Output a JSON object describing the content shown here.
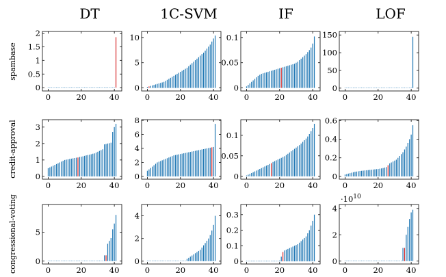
{
  "columns": [
    "DT",
    "1C-SVM",
    "IF",
    "LOF"
  ],
  "rows": [
    "spambase",
    "credit-approval",
    "congressional-voting"
  ],
  "colors": {
    "bar": "#1f77b4",
    "highlight": "#d62728",
    "frame": "#000000"
  },
  "chart_data": [
    {
      "type": "bar",
      "row": "spambase",
      "column": "DT",
      "x_ticks": [
        0,
        20,
        40
      ],
      "ylim": [
        -0.12,
        2.06
      ],
      "yticks": [
        "0",
        "0.5",
        "1",
        "1.5",
        "2"
      ],
      "ytick_values": [
        0,
        0.5,
        1,
        1.5,
        2
      ],
      "values": [
        0,
        0,
        0,
        0,
        0,
        0,
        0,
        0,
        0,
        0,
        0,
        0,
        0,
        0,
        0,
        0,
        0,
        0,
        0,
        0,
        0,
        0,
        0,
        0,
        0,
        0,
        0,
        0,
        0,
        0,
        0,
        0,
        0,
        0,
        0,
        0,
        0,
        0,
        0,
        0,
        0,
        1.85
      ],
      "highlight_index": 41
    },
    {
      "type": "bar",
      "row": "spambase",
      "column": "1C-SVM",
      "x_ticks": [
        0,
        20,
        40
      ],
      "ylim": [
        -0.6,
        11.2
      ],
      "yticks": [
        "0",
        "5",
        "10"
      ],
      "ytick_values": [
        0,
        5,
        10
      ],
      "values": [
        0.2,
        0.3,
        0.4,
        0.5,
        0.6,
        0.7,
        0.8,
        0.9,
        1.0,
        1.1,
        1.2,
        1.4,
        1.6,
        1.8,
        2.0,
        2.2,
        2.4,
        2.6,
        2.8,
        3.0,
        3.2,
        3.4,
        3.6,
        3.8,
        4.0,
        4.3,
        4.6,
        4.9,
        5.2,
        5.5,
        5.8,
        6.1,
        6.4,
        6.7,
        7.0,
        7.4,
        7.8,
        8.2,
        8.6,
        9.2,
        9.8,
        10.4
      ],
      "highlight_index": 1
    },
    {
      "type": "bar",
      "row": "spambase",
      "column": "IF",
      "x_ticks": [
        0,
        20,
        40
      ],
      "ylim": [
        -0.006,
        0.112
      ],
      "yticks": [
        "0",
        "0.05",
        "0.1"
      ],
      "ytick_values": [
        0,
        0.05,
        0.1
      ],
      "values": [
        0.003,
        0.006,
        0.009,
        0.012,
        0.015,
        0.018,
        0.021,
        0.024,
        0.026,
        0.028,
        0.029,
        0.03,
        0.031,
        0.032,
        0.033,
        0.034,
        0.035,
        0.036,
        0.037,
        0.038,
        0.039,
        0.04,
        0.041,
        0.042,
        0.043,
        0.044,
        0.045,
        0.046,
        0.047,
        0.048,
        0.05,
        0.052,
        0.055,
        0.058,
        0.061,
        0.064,
        0.067,
        0.071,
        0.075,
        0.08,
        0.088,
        0.102
      ],
      "highlight_index": 21
    },
    {
      "type": "bar",
      "row": "spambase",
      "column": "LOF",
      "x_ticks": [
        0,
        20,
        40
      ],
      "ylim": [
        -8,
        160
      ],
      "yticks": [
        "0",
        "50",
        "100",
        "150"
      ],
      "ytick_values": [
        0,
        50,
        100,
        150
      ],
      "values": [
        0,
        0,
        0,
        0,
        0,
        0,
        0,
        0,
        0,
        0,
        0,
        0,
        0,
        0,
        0,
        0,
        0,
        0,
        0,
        0,
        0,
        0,
        0,
        0,
        0,
        0,
        0,
        0,
        0,
        0,
        0,
        0,
        0,
        0,
        0,
        0,
        0,
        0,
        0,
        0,
        0,
        145
      ],
      "highlight_index": null
    },
    {
      "type": "bar",
      "row": "credit-approval",
      "column": "DT",
      "x_ticks": [
        0,
        20,
        40
      ],
      "ylim": [
        -0.17,
        3.45
      ],
      "yticks": [
        "0",
        "1",
        "2",
        "3"
      ],
      "ytick_values": [
        0,
        1,
        2,
        3
      ],
      "values": [
        0.5,
        0.55,
        0.6,
        0.65,
        0.7,
        0.75,
        0.8,
        0.85,
        0.9,
        0.95,
        1.0,
        1.02,
        1.04,
        1.06,
        1.08,
        1.1,
        1.12,
        1.14,
        1.15,
        1.18,
        1.2,
        1.22,
        1.25,
        1.28,
        1.3,
        1.32,
        1.35,
        1.38,
        1.4,
        1.45,
        1.5,
        1.55,
        1.6,
        1.65,
        1.95,
        1.97,
        2.0,
        2.02,
        2.05,
        2.7,
        3.0,
        3.2
      ],
      "highlight_index": 18
    },
    {
      "type": "bar",
      "row": "credit-approval",
      "column": "1C-SVM",
      "x_ticks": [
        0,
        20,
        40
      ],
      "ylim": [
        -0.4,
        8.1
      ],
      "yticks": [
        "0",
        "2",
        "4",
        "6",
        "8"
      ],
      "ytick_values": [
        0,
        2,
        4,
        6,
        8
      ],
      "values": [
        0.8,
        1.0,
        1.2,
        1.4,
        1.6,
        1.8,
        2.0,
        2.1,
        2.2,
        2.3,
        2.4,
        2.5,
        2.6,
        2.7,
        2.8,
        2.9,
        3.0,
        3.05,
        3.1,
        3.15,
        3.2,
        3.25,
        3.3,
        3.35,
        3.4,
        3.45,
        3.5,
        3.55,
        3.6,
        3.65,
        3.7,
        3.75,
        3.8,
        3.85,
        3.9,
        3.95,
        4.0,
        4.05,
        4.1,
        4.15,
        4.2,
        7.5
      ],
      "highlight_index": 39
    },
    {
      "type": "bar",
      "row": "credit-approval",
      "column": "IF",
      "x_ticks": [
        0,
        20,
        40
      ],
      "ylim": [
        -0.007,
        0.138
      ],
      "yticks": [
        "0",
        "0.05",
        "0.1"
      ],
      "ytick_values": [
        0,
        0.05,
        0.1
      ],
      "values": [
        0.002,
        0.004,
        0.006,
        0.008,
        0.01,
        0.012,
        0.014,
        0.016,
        0.018,
        0.02,
        0.022,
        0.024,
        0.026,
        0.028,
        0.03,
        0.032,
        0.035,
        0.037,
        0.039,
        0.041,
        0.043,
        0.045,
        0.047,
        0.049,
        0.052,
        0.055,
        0.058,
        0.061,
        0.064,
        0.067,
        0.07,
        0.073,
        0.076,
        0.08,
        0.084,
        0.088,
        0.092,
        0.097,
        0.103,
        0.11,
        0.118,
        0.128
      ],
      "highlight_index": 15
    },
    {
      "type": "bar",
      "row": "credit-approval",
      "column": "LOF",
      "x_ticks": [
        0,
        20,
        40
      ],
      "ylim": [
        -0.03,
        0.61
      ],
      "yticks": [
        "0",
        "0.2",
        "0.4",
        "0.6"
      ],
      "ytick_values": [
        0,
        0.2,
        0.4,
        0.6
      ],
      "values": [
        0.02,
        0.025,
        0.03,
        0.035,
        0.04,
        0.045,
        0.05,
        0.052,
        0.055,
        0.058,
        0.06,
        0.062,
        0.064,
        0.066,
        0.068,
        0.07,
        0.072,
        0.074,
        0.076,
        0.078,
        0.08,
        0.083,
        0.086,
        0.09,
        0.095,
        0.1,
        0.12,
        0.14,
        0.15,
        0.16,
        0.17,
        0.18,
        0.2,
        0.22,
        0.24,
        0.26,
        0.29,
        0.32,
        0.36,
        0.4,
        0.45,
        0.55
      ],
      "highlight_index": 26
    },
    {
      "type": "bar",
      "row": "congressional-voting",
      "column": "DT",
      "x_ticks": [
        0,
        20,
        40
      ],
      "ylim": [
        -0.5,
        9.8
      ],
      "yticks": [
        "0",
        "5"
      ],
      "ytick_values": [
        0,
        5
      ],
      "values": [
        0,
        0,
        0,
        0,
        0,
        0,
        0,
        0,
        0,
        0,
        0,
        0,
        0,
        0,
        0,
        0,
        0,
        0,
        0,
        0,
        0,
        0,
        0,
        0,
        0,
        0,
        0,
        0,
        0,
        0,
        0,
        0,
        0,
        0,
        1.0,
        1.0,
        3.0,
        3.5,
        4.0,
        5.5,
        6.5,
        8.0
      ],
      "highlight_index": 35
    },
    {
      "type": "bar",
      "row": "congressional-voting",
      "column": "1C-SVM",
      "x_ticks": [
        0,
        20,
        40
      ],
      "ylim": [
        -0.25,
        5.0
      ],
      "yticks": [
        "0",
        "2",
        "4"
      ],
      "ytick_values": [
        0,
        2,
        4
      ],
      "values": [
        0,
        0,
        0,
        0,
        0,
        0,
        0,
        0,
        0,
        0,
        0,
        0,
        0,
        0,
        0,
        0,
        0,
        0,
        0,
        0,
        0,
        0,
        0,
        0,
        0.2,
        0.3,
        0.4,
        0.5,
        0.6,
        0.7,
        0.8,
        0.9,
        1.0,
        1.2,
        1.4,
        1.6,
        1.8,
        2.0,
        2.3,
        2.7,
        3.2,
        4.0
      ],
      "highlight_index": null
    },
    {
      "type": "bar",
      "row": "congressional-voting",
      "column": "IF",
      "x_ticks": [
        0,
        20,
        40
      ],
      "ylim": [
        -0.017,
        0.365
      ],
      "yticks": [
        "0",
        "0.1",
        "0.2",
        "0.3"
      ],
      "ytick_values": [
        0,
        0.1,
        0.2,
        0.3
      ],
      "values": [
        0,
        0,
        0,
        0,
        0,
        0,
        0,
        0,
        0,
        0,
        0,
        0,
        0,
        0,
        0,
        0,
        0,
        0,
        0,
        0,
        0.005,
        0.03,
        0.06,
        0.07,
        0.075,
        0.08,
        0.085,
        0.09,
        0.095,
        0.1,
        0.105,
        0.11,
        0.12,
        0.13,
        0.14,
        0.15,
        0.16,
        0.18,
        0.2,
        0.23,
        0.26,
        0.3
      ],
      "highlight_index": 22
    },
    {
      "type": "bar",
      "row": "congressional-voting",
      "column": "LOF",
      "x_ticks": [
        0,
        20,
        40
      ],
      "ylim": [
        -0.22,
        4.3
      ],
      "yticks": [
        "0",
        "2",
        "4"
      ],
      "ytick_values": [
        0,
        2,
        4
      ],
      "multiplier": "·10",
      "multiplier_exp": "10",
      "values": [
        0,
        0,
        0,
        0,
        0,
        0,
        0,
        0,
        0,
        0,
        0,
        0,
        0,
        0,
        0,
        0,
        0,
        0,
        0,
        0,
        0,
        0,
        0,
        0,
        0,
        0,
        0,
        0,
        0,
        0,
        0,
        0,
        0,
        0,
        0,
        1.0,
        1.0,
        2.0,
        2.6,
        3.2,
        3.7,
        3.9
      ],
      "highlight_index": 36
    }
  ]
}
